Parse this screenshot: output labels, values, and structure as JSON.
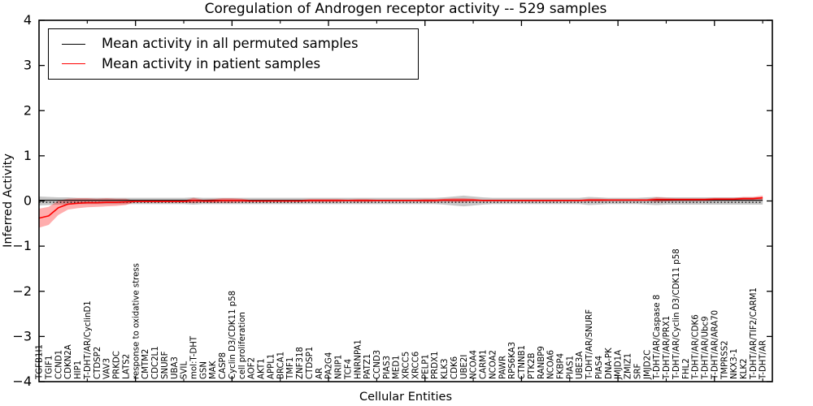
{
  "title": "Coregulation of Androgen receptor activity -- 529 samples",
  "legend": {
    "entries": [
      {
        "label": "Mean activity in all permuted samples",
        "color": "#000000"
      },
      {
        "label": "Mean activity in patient samples",
        "color": "#ff0000"
      }
    ],
    "position": "upper left"
  },
  "axes": {
    "ylabel": "Inferred Activity",
    "xlabel": "Cellular Entities",
    "ytick_values": [
      4,
      3,
      2,
      1,
      0,
      -1,
      -2,
      -3,
      -4
    ],
    "ytick_labels": [
      "4",
      "3",
      "2",
      "1",
      "0",
      "−1",
      "−2",
      "−3",
      "−4"
    ]
  },
  "chart_data": {
    "type": "line",
    "title": "Coregulation of Androgen receptor activity -- 529 samples",
    "xlabel": "Cellular Entities",
    "ylabel": "Inferred Activity",
    "ylim": [
      -4,
      4
    ],
    "grid": false,
    "legend_position": "upper left",
    "zero_reference_line": {
      "style": "dotted",
      "color": "#000000",
      "y": 0
    },
    "xtick_major_indices": [
      10,
      20,
      30,
      40,
      50,
      60,
      70
    ],
    "xtick_minor_indices": [
      5,
      15,
      25,
      35,
      45,
      55,
      65,
      75
    ],
    "categories": [
      "TGFB1I1",
      "TGIF1",
      "CCND1",
      "CDKN2A",
      "HIP1",
      "T-DHT/AR/CyclinD1",
      "CTDSP2",
      "VAV3",
      "PRKDC",
      "LATS2",
      "response to oxidative stress",
      "CMTM2",
      "CDC2L1",
      "SNURF",
      "UBA3",
      "SVIL",
      "mol:T-DHT",
      "GSN",
      "MAK",
      "CASP8",
      "Cyclin D3/CDK11 p58",
      "cell proliferation",
      "AOF2",
      "AKT1",
      "APPL1",
      "BRCA1",
      "TMF1",
      "ZNF318",
      "CTDSP1",
      "AR",
      "PA2G4",
      "NRIP1",
      "TCF4",
      "HNRNPA1",
      "PATZ1",
      "CCND3",
      "PIAS3",
      "MED1",
      "XRCC5",
      "XRCC6",
      "PELP1",
      "PRDX1",
      "KLK3",
      "CDK6",
      "UBE2I",
      "NCOA4",
      "CARM1",
      "NCOA2",
      "PAWR",
      "RPS6KA3",
      "CTNNB1",
      "PTK2B",
      "RANBP9",
      "NCOA6",
      "FKBP4",
      "PIAS1",
      "UBE3A",
      "T-DHT/AR/SNURF",
      "PIAS4",
      "DNA-PK",
      "JMJD1A",
      "ZMIZ1",
      "SRF",
      "JMJD2C",
      "T-DHT/AR/Caspase 8",
      "T-DHT/AR/PRX1",
      "T-DHT/AR/Cyclin D3/CDK11 p58",
      "FHL2",
      "T-DHT/AR/CDK6",
      "T-DHT/AR/Ubc9",
      "T-DHT/AR/ARA70",
      "TMPRSS2",
      "NKX3-1",
      "KLK2",
      "T-DHT/AR/TIF2/CARM1",
      "T-DHT/AR"
    ],
    "series": [
      {
        "name": "Mean activity in all permuted samples",
        "color": "#000000",
        "band_color": "rgba(0,0,0,0.22)",
        "mean": 0.0,
        "band_halfwidths": [
          0.1,
          0.09,
          0.08,
          0.08,
          0.07,
          0.07,
          0.07,
          0.07,
          0.07,
          0.07,
          0.07,
          0.07,
          0.07,
          0.07,
          0.07,
          0.07,
          0.08,
          0.07,
          0.07,
          0.07,
          0.07,
          0.07,
          0.07,
          0.07,
          0.07,
          0.07,
          0.07,
          0.07,
          0.07,
          0.07,
          0.07,
          0.07,
          0.07,
          0.07,
          0.07,
          0.07,
          0.07,
          0.07,
          0.07,
          0.07,
          0.07,
          0.07,
          0.08,
          0.1,
          0.12,
          0.1,
          0.08,
          0.07,
          0.07,
          0.07,
          0.07,
          0.07,
          0.07,
          0.07,
          0.07,
          0.07,
          0.07,
          0.09,
          0.08,
          0.07,
          0.07,
          0.07,
          0.07,
          0.08,
          0.09,
          0.08,
          0.08,
          0.08,
          0.08,
          0.08,
          0.08,
          0.08,
          0.08,
          0.08,
          0.08,
          0.08
        ]
      },
      {
        "name": "Mean activity in patient samples",
        "color": "#ff0000",
        "band_color": "rgba(255,0,0,0.32)",
        "means": [
          -0.38,
          -0.33,
          -0.15,
          -0.07,
          -0.05,
          -0.04,
          -0.04,
          -0.03,
          -0.03,
          -0.02,
          -0.01,
          -0.01,
          -0.01,
          -0.01,
          -0.01,
          -0.01,
          0.01,
          0.0,
          0.0,
          0.01,
          0.01,
          0.01,
          0.0,
          0.0,
          0.0,
          0.0,
          0.0,
          0.0,
          0.01,
          0.01,
          0.01,
          0.01,
          0.01,
          0.01,
          0.01,
          0.01,
          0.01,
          0.01,
          0.01,
          0.01,
          0.01,
          0.01,
          0.02,
          0.02,
          0.02,
          0.02,
          0.01,
          0.01,
          0.01,
          0.01,
          0.01,
          0.01,
          0.01,
          0.01,
          0.01,
          0.01,
          0.01,
          0.02,
          0.02,
          0.02,
          0.02,
          0.02,
          0.02,
          0.02,
          0.03,
          0.03,
          0.03,
          0.03,
          0.03,
          0.03,
          0.04,
          0.04,
          0.04,
          0.05,
          0.05,
          0.07
        ],
        "band_halfwidths": [
          0.21,
          0.2,
          0.16,
          0.12,
          0.11,
          0.1,
          0.09,
          0.09,
          0.08,
          0.07,
          0.01,
          0.02,
          0.02,
          0.02,
          0.02,
          0.02,
          0.06,
          0.03,
          0.04,
          0.05,
          0.05,
          0.04,
          0.02,
          0.02,
          0.02,
          0.02,
          0.02,
          0.02,
          0.03,
          0.03,
          0.03,
          0.03,
          0.02,
          0.03,
          0.03,
          0.02,
          0.02,
          0.02,
          0.02,
          0.02,
          0.03,
          0.03,
          0.03,
          0.04,
          0.04,
          0.03,
          0.02,
          0.02,
          0.02,
          0.02,
          0.02,
          0.02,
          0.02,
          0.02,
          0.02,
          0.02,
          0.02,
          0.03,
          0.03,
          0.02,
          0.02,
          0.02,
          0.02,
          0.02,
          0.05,
          0.04,
          0.03,
          0.03,
          0.03,
          0.03,
          0.03,
          0.03,
          0.03,
          0.04,
          0.04,
          0.05
        ]
      }
    ]
  }
}
